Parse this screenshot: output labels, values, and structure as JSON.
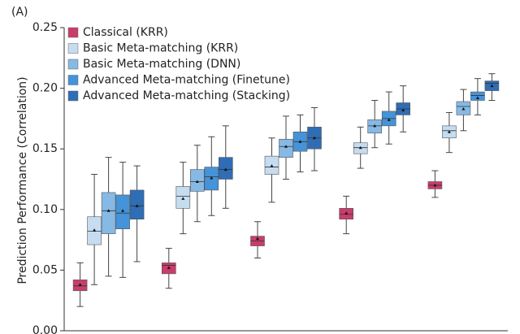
{
  "chart_data": {
    "type": "box",
    "panel_label": "(A)",
    "ylabel": "Prediction Performance (Correlation)",
    "categories": [
      null,
      null,
      null,
      null,
      null
    ],
    "ylim": [
      0,
      0.25
    ],
    "yticks": [
      {
        "value": 0,
        "label": "0.00"
      },
      {
        "value": 0.05,
        "label": "0.05"
      },
      {
        "value": 0.1,
        "label": "0.10"
      },
      {
        "value": 0.15,
        "label": "0.15"
      },
      {
        "value": 0.2,
        "label": "0.20"
      },
      {
        "value": 0.25,
        "label": "0.25"
      }
    ],
    "legend": "upper left",
    "series": [
      {
        "name": "Classical (KRR)",
        "color": "#c93d6b",
        "whislo": [
          0.02,
          0.035,
          0.06,
          0.08,
          0.11
        ],
        "q1": [
          0.033,
          0.047,
          0.07,
          0.092,
          0.117
        ],
        "med": [
          0.037,
          0.054,
          0.074,
          0.096,
          0.12
        ],
        "q3": [
          0.042,
          0.056,
          0.078,
          0.101,
          0.123
        ],
        "whishi": [
          0.056,
          0.068,
          0.09,
          0.111,
          0.132
        ],
        "mean": [
          0.038,
          0.052,
          0.076,
          0.097,
          0.12
        ]
      },
      {
        "name": "Basic Meta-matching (KRR)",
        "color": "#c6dcf0",
        "whislo": [
          0.038,
          0.08,
          0.106,
          0.134,
          0.147
        ],
        "q1": [
          0.071,
          0.101,
          0.129,
          0.146,
          0.159
        ],
        "med": [
          0.082,
          0.111,
          0.135,
          0.151,
          0.165
        ],
        "q3": [
          0.094,
          0.119,
          0.144,
          0.155,
          0.169
        ],
        "whishi": [
          0.129,
          0.139,
          0.159,
          0.168,
          0.18
        ],
        "mean": [
          0.083,
          0.109,
          0.136,
          0.151,
          0.164
        ]
      },
      {
        "name": "Basic Meta-matching (DNN)",
        "color": "#86b9e4",
        "whislo": [
          0.045,
          0.09,
          0.125,
          0.151,
          0.165
        ],
        "q1": [
          0.08,
          0.115,
          0.143,
          0.163,
          0.178
        ],
        "med": [
          0.099,
          0.123,
          0.152,
          0.169,
          0.185
        ],
        "q3": [
          0.114,
          0.133,
          0.158,
          0.174,
          0.189
        ],
        "whishi": [
          0.143,
          0.153,
          0.177,
          0.19,
          0.199
        ],
        "mean": [
          0.099,
          0.123,
          0.152,
          0.169,
          0.183
        ]
      },
      {
        "name": "Advanced Meta-matching (Finetune)",
        "color": "#4593d8",
        "whislo": [
          0.044,
          0.095,
          0.131,
          0.154,
          0.178
        ],
        "q1": [
          0.084,
          0.116,
          0.148,
          0.169,
          0.19
        ],
        "med": [
          0.097,
          0.127,
          0.156,
          0.175,
          0.194
        ],
        "q3": [
          0.112,
          0.135,
          0.164,
          0.181,
          0.197
        ],
        "whishi": [
          0.139,
          0.16,
          0.178,
          0.197,
          0.208
        ],
        "mean": [
          0.099,
          0.126,
          0.156,
          0.174,
          0.192
        ]
      },
      {
        "name": "Advanced Meta-matching (Stacking)",
        "color": "#2f6db5",
        "whislo": [
          0.057,
          0.101,
          0.132,
          0.164,
          0.19
        ],
        "q1": [
          0.092,
          0.125,
          0.15,
          0.178,
          0.198
        ],
        "med": [
          0.103,
          0.133,
          0.159,
          0.183,
          0.204
        ],
        "q3": [
          0.116,
          0.143,
          0.168,
          0.188,
          0.206
        ],
        "whishi": [
          0.136,
          0.169,
          0.184,
          0.202,
          0.212
        ],
        "mean": [
          0.103,
          0.133,
          0.159,
          0.182,
          0.202
        ]
      }
    ]
  }
}
